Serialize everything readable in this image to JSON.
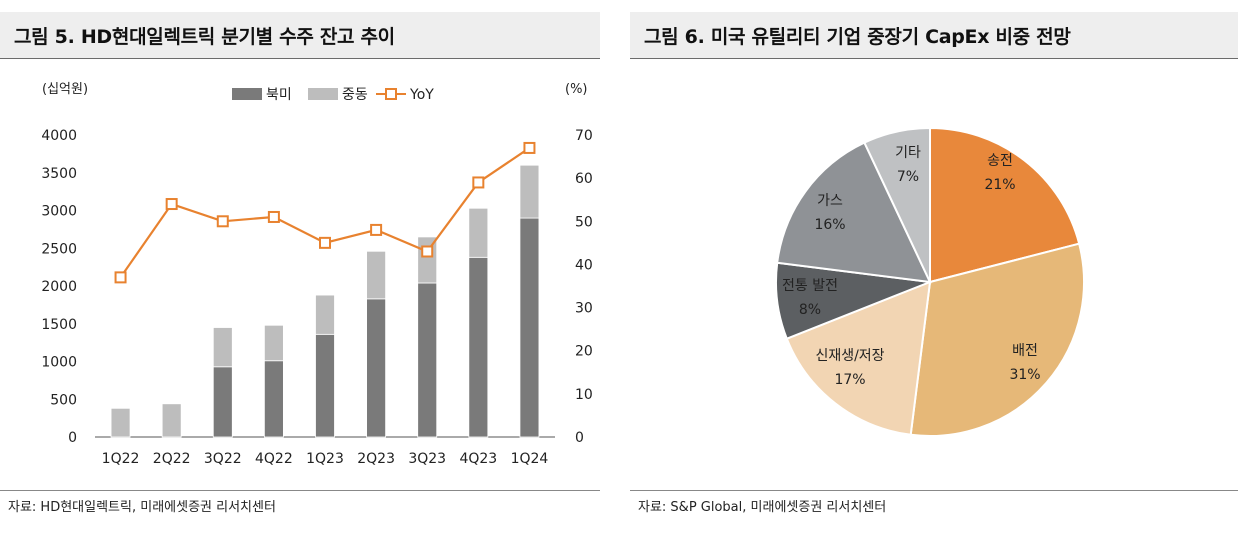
{
  "left": {
    "title": "그림 5. HD현대일렉트릭 분기별 수주 잔고 추이",
    "source": "자료: HD현대일렉트릭, 미래에셋증권 리서치센터"
  },
  "right": {
    "title": "그림 6. 미국 유틸리티 기업 중장기 CapEx 비중 전망",
    "source": "자료: S&P Global, 미래에셋증권 리서치센터"
  },
  "chart_data": [
    {
      "type": "bar",
      "stacked": true,
      "categories": [
        "1Q22",
        "2Q22",
        "3Q22",
        "4Q22",
        "1Q23",
        "2Q23",
        "3Q23",
        "4Q23",
        "1Q24"
      ],
      "series": [
        {
          "name": "북미",
          "type": "bar",
          "axis": "left",
          "color": "#7a7a7a",
          "values": [
            0,
            0,
            930,
            1010,
            1360,
            1830,
            2040,
            2380,
            2900
          ]
        },
        {
          "name": "중동",
          "type": "bar",
          "axis": "left",
          "color": "#bdbdbd",
          "values": [
            380,
            440,
            520,
            470,
            520,
            630,
            610,
            650,
            700
          ]
        },
        {
          "name": "YoY",
          "type": "line",
          "axis": "right",
          "color": "#e8822f",
          "values": [
            37,
            54,
            50,
            51,
            45,
            48,
            43,
            59,
            67
          ]
        }
      ],
      "yleft_label": "(십억원)",
      "yright_label": "(%)",
      "ylim_left": [
        0,
        4000
      ],
      "ylim_right": [
        0,
        70
      ],
      "yleft_ticks": [
        0,
        500,
        1000,
        1500,
        2000,
        2500,
        3000,
        3500,
        4000
      ],
      "yright_ticks": [
        0,
        10,
        20,
        30,
        40,
        50,
        60,
        70
      ],
      "legend_position": "top",
      "grid": false
    },
    {
      "type": "pie",
      "slices": [
        {
          "label": "송전",
          "value": 21,
          "pct": "21%",
          "color": "#e8883b"
        },
        {
          "label": "배전",
          "value": 31,
          "pct": "31%",
          "color": "#e6b878"
        },
        {
          "label": "신재생/저장",
          "value": 17,
          "pct": "17%",
          "color": "#f2d5b3"
        },
        {
          "label": "전통 발전",
          "value": 8,
          "pct": "8%",
          "color": "#5c5f62"
        },
        {
          "label": "가스",
          "value": 16,
          "pct": "16%",
          "color": "#8f9296"
        },
        {
          "label": "기타",
          "value": 7,
          "pct": "7%",
          "color": "#bfc1c3"
        }
      ]
    }
  ]
}
